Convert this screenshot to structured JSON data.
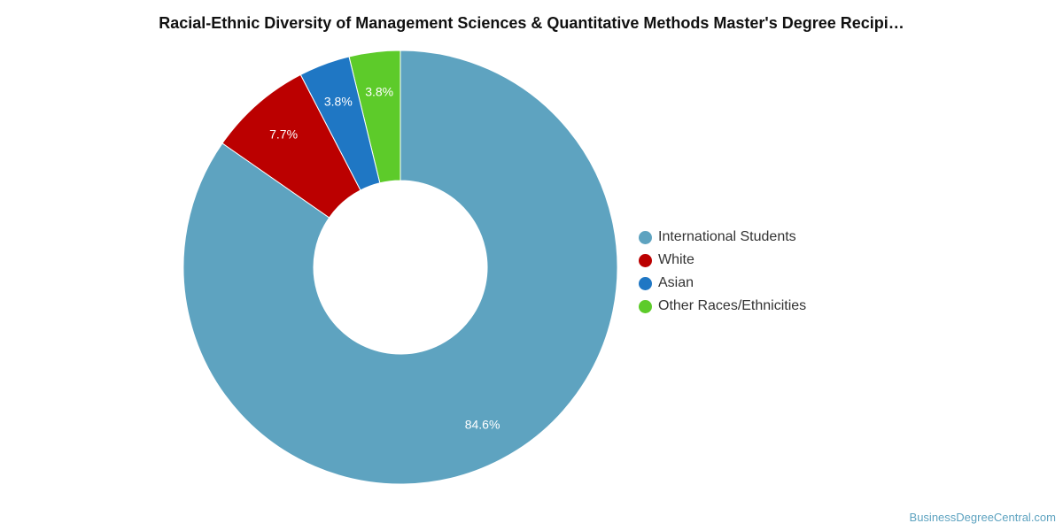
{
  "chart_data": {
    "type": "pie",
    "variant": "donut",
    "title": "Racial-Ethnic Diversity of Management Sciences & Quantitative Methods Master's Degree Recipi…",
    "slices": [
      {
        "label": "International Students",
        "value": 84.6,
        "display": "84.6%",
        "color": "#5ea3c0"
      },
      {
        "label": "White",
        "value": 7.7,
        "display": "7.7%",
        "color": "#bb0000"
      },
      {
        "label": "Asian",
        "value": 3.8,
        "display": "3.8%",
        "color": "#1f77c4"
      },
      {
        "label": "Other Races/Ethnicities",
        "value": 3.8,
        "display": "3.8%",
        "color": "#5dcb2a"
      }
    ],
    "start": "top",
    "direction": "counterclockwise",
    "legend_position": "right"
  },
  "watermark": "BusinessDegreeCentral.com"
}
